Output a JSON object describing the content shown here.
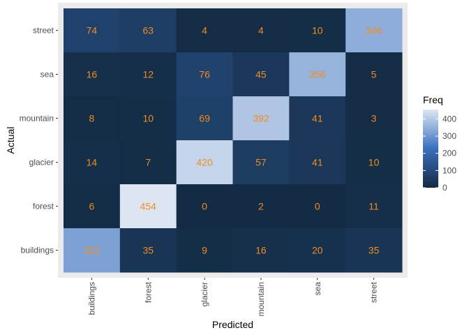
{
  "chart_data": {
    "type": "heatmap",
    "xlabel": "Predicted",
    "ylabel": "Actual",
    "x_categories": [
      "buildings",
      "forest",
      "glacier",
      "mountain",
      "sea",
      "street"
    ],
    "y_categories": [
      "street",
      "sea",
      "mountain",
      "glacier",
      "forest",
      "buildings"
    ],
    "values": [
      [
        74,
        63,
        4,
        4,
        10,
        346
      ],
      [
        16,
        12,
        76,
        45,
        356,
        5
      ],
      [
        8,
        10,
        69,
        392,
        41,
        3
      ],
      [
        14,
        7,
        420,
        57,
        41,
        10
      ],
      [
        6,
        454,
        0,
        2,
        0,
        11
      ],
      [
        322,
        35,
        9,
        16,
        20,
        35
      ]
    ],
    "legend": {
      "title": "Freq",
      "ticks": [
        0,
        100,
        200,
        300,
        400
      ],
      "range": [
        0,
        454
      ],
      "position": "right"
    },
    "colors": {
      "low": "#132b43",
      "mid": "#3a6fbf",
      "high": "#dce6f2",
      "cell_text": "#f28c1a",
      "panel_background": "#ebebeb"
    },
    "grid": false
  }
}
